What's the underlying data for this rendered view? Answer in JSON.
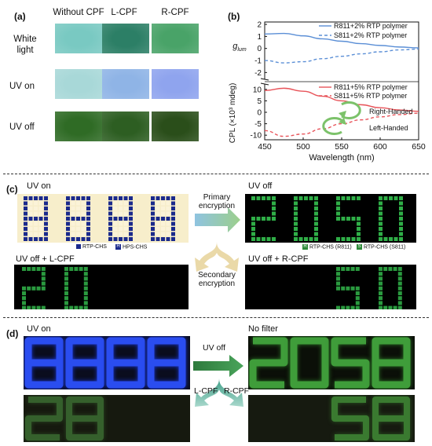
{
  "panel_a": {
    "label": "(a)",
    "columns": [
      "Without CPF",
      "L-CPF",
      "R-CPF"
    ],
    "rows": [
      "White light",
      "UV on",
      "UV off"
    ],
    "swatch_colors": [
      [
        "#79c9c2",
        "#2c7f66",
        "#49a368"
      ],
      [
        "#a8d8d8",
        "#8fb4e6",
        "#8fa4ee"
      ],
      [
        "#2f6b25",
        "#2d5e22",
        "#2a4e1a"
      ]
    ]
  },
  "panel_b": {
    "label": "(b)",
    "ylabel_top": "g",
    "ylabel_top_sub": "lum",
    "ylabel_bottom": "CPL (×10³ mdeg)",
    "xlabel": "Wavelength (nm)",
    "legend_top": [
      "R811+2% RTP polymer",
      "S811+2% RTP polymer"
    ],
    "legend_bottom": [
      "R811+5% RTP polymer",
      "S811+5% RTP polymer"
    ],
    "annotation_right": "Right-Handed",
    "annotation_left": "Left-Handed",
    "x_ticks": [
      "450",
      "500",
      "550",
      "600",
      "650"
    ],
    "top_y_ticks": [
      "2",
      "1",
      "0",
      "-1",
      "-2"
    ],
    "bottom_y_ticks": [
      "10",
      "5",
      "0",
      "-5",
      "-10"
    ],
    "colors": {
      "blue": "#5b8fd6",
      "red": "#e8545a"
    }
  },
  "chart_data": {
    "type": "line",
    "xlabel": "Wavelength (nm)",
    "xlim": [
      450,
      650
    ],
    "panels": [
      {
        "ylabel": "g_lum",
        "ylim": [
          -2.5,
          2.2
        ],
        "series": [
          {
            "name": "R811+2% RTP polymer",
            "x": [
              450,
              475,
              500,
              525,
              550,
              575,
              600,
              625,
              650
            ],
            "values": [
              1.2,
              1.25,
              1.05,
              0.8,
              0.6,
              0.4,
              0.25,
              0.12,
              0.05
            ]
          },
          {
            "name": "S811+2% RTP polymer",
            "x": [
              450,
              475,
              500,
              525,
              550,
              575,
              600,
              625,
              650
            ],
            "values": [
              -1.0,
              -1.2,
              -1.1,
              -0.85,
              -0.65,
              -0.45,
              -0.28,
              -0.12,
              -0.05
            ]
          }
        ]
      },
      {
        "ylabel": "CPL (×10³ mdeg)",
        "ylim": [
          -12,
          12
        ],
        "series": [
          {
            "name": "R811+5% RTP polymer",
            "x": [
              450,
              475,
              500,
              525,
              550,
              575,
              600,
              625,
              650
            ],
            "values": [
              9.5,
              10.5,
              9.2,
              7.0,
              5.0,
              3.3,
              2.0,
              1.0,
              0.4
            ]
          },
          {
            "name": "S811+5% RTP polymer",
            "x": [
              450,
              475,
              500,
              525,
              550,
              575,
              600,
              625,
              650
            ],
            "values": [
              -8.0,
              -10.5,
              -9.5,
              -7.2,
              -5.0,
              -3.3,
              -2.0,
              -1.0,
              -0.4
            ]
          }
        ]
      }
    ]
  },
  "panel_c": {
    "label": "(c)",
    "uv_on": "UV on",
    "uv_off": "UV off",
    "primary": [
      "Primary",
      "encryption"
    ],
    "secondary": [
      "Secondary",
      "encryption"
    ],
    "uv_off_l": "UV off + L-CPF",
    "uv_off_r": "UV off + R-CPF",
    "legend_left": [
      {
        "box": "",
        "text": "RTP-CHS"
      },
      {
        "box": "H",
        "text": "HPS-CHS"
      }
    ],
    "legend_right": [
      {
        "box": "R",
        "text": "RTP-CHS (R811)"
      },
      {
        "box": "S",
        "text": "RTP-CHS (S811)"
      }
    ]
  },
  "panel_d": {
    "label": "(d)",
    "uv_on": "UV on",
    "no_filter": "No filter",
    "uv_off": "UV off",
    "l_cpf": "L-CPF",
    "r_cpf": "R-CPF"
  }
}
